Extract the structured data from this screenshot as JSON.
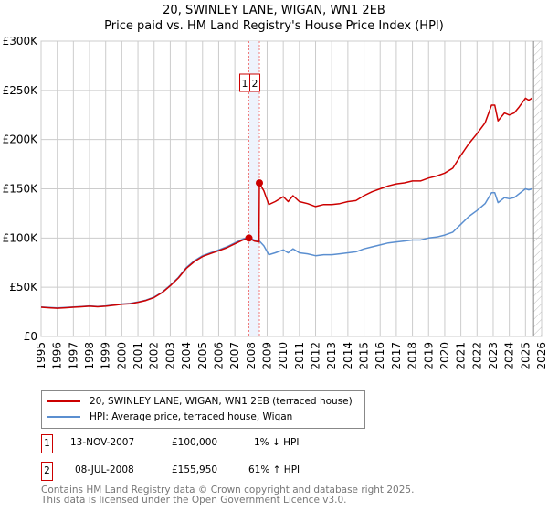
{
  "title_line1": "20, SWINLEY LANE, WIGAN, WN1 2EB",
  "title_line2": "Price paid vs. HM Land Registry's House Price Index (HPI)",
  "chart_data": {
    "type": "line",
    "title": "20, SWINLEY LANE, WIGAN, WN1 2EB — Price paid vs. HM Land Registry's House Price Index (HPI)",
    "xlabel": "",
    "ylabel": "",
    "xlim": [
      1995,
      2026
    ],
    "ylim": [
      0,
      300000
    ],
    "x_ticks": [
      1995,
      1996,
      1997,
      1998,
      1999,
      2000,
      2001,
      2002,
      2003,
      2004,
      2005,
      2006,
      2007,
      2008,
      2009,
      2010,
      2011,
      2012,
      2013,
      2014,
      2015,
      2016,
      2017,
      2018,
      2019,
      2020,
      2021,
      2022,
      2023,
      2024,
      2025,
      2026
    ],
    "y_ticks": [
      0,
      50000,
      100000,
      150000,
      200000,
      250000,
      300000
    ],
    "y_tick_labels": [
      "£0",
      "£50K",
      "£100K",
      "£150K",
      "£200K",
      "£250K",
      "£300K"
    ],
    "grid": true,
    "forecast_hatch_from": 2025.5,
    "series": [
      {
        "name": "20, SWINLEY LANE, WIGAN, WN1 2EB (terraced house)",
        "color": "#cc0000",
        "x": [
          1995,
          1995.5,
          1996,
          1996.5,
          1997,
          1997.5,
          1998,
          1998.5,
          1999,
          1999.5,
          2000,
          2000.5,
          2001,
          2001.5,
          2002,
          2002.5,
          2003,
          2003.5,
          2004,
          2004.5,
          2005,
          2005.5,
          2006,
          2006.5,
          2007,
          2007.5,
          2007.87,
          2008.2,
          2008.5,
          2008.52,
          2008.8,
          2009.1,
          2009.5,
          2010,
          2010.3,
          2010.6,
          2011,
          2011.5,
          2012,
          2012.5,
          2013,
          2013.5,
          2014,
          2014.5,
          2015,
          2015.5,
          2016,
          2016.5,
          2017,
          2017.5,
          2018,
          2018.5,
          2019,
          2019.5,
          2020,
          2020.5,
          2021,
          2021.5,
          2022,
          2022.5,
          2022.9,
          2023.1,
          2023.3,
          2023.7,
          2024,
          2024.3,
          2024.6,
          2025,
          2025.2,
          2025.4
        ],
        "y": [
          29700,
          29200,
          28700,
          29200,
          29700,
          30200,
          30700,
          30200,
          30700,
          31700,
          32700,
          33200,
          34700,
          36600,
          39600,
          44600,
          51500,
          59400,
          69300,
          76200,
          81200,
          84200,
          87100,
          90100,
          94100,
          98000,
          100000,
          97000,
          96000,
          155950,
          148000,
          134000,
          137000,
          142000,
          137000,
          143000,
          137000,
          135000,
          132000,
          134000,
          134000,
          135000,
          137000,
          138000,
          143000,
          147000,
          150000,
          153000,
          155000,
          156000,
          158000,
          158000,
          161000,
          163000,
          166000,
          171000,
          184000,
          196000,
          206000,
          217000,
          235000,
          235000,
          219000,
          227000,
          225000,
          227000,
          233000,
          242000,
          240000,
          242000
        ]
      },
      {
        "name": "HPI: Average price, terraced house, Wigan",
        "color": "#5b8fd0",
        "x": [
          1995,
          1995.5,
          1996,
          1996.5,
          1997,
          1997.5,
          1998,
          1998.5,
          1999,
          1999.5,
          2000,
          2000.5,
          2001,
          2001.5,
          2002,
          2002.5,
          2003,
          2003.5,
          2004,
          2004.5,
          2005,
          2005.5,
          2006,
          2006.5,
          2007,
          2007.5,
          2007.87,
          2008.2,
          2008.52,
          2008.8,
          2009.1,
          2009.5,
          2010,
          2010.3,
          2010.6,
          2011,
          2011.5,
          2012,
          2012.5,
          2013,
          2013.5,
          2014,
          2014.5,
          2015,
          2015.5,
          2016,
          2016.5,
          2017,
          2017.5,
          2018,
          2018.5,
          2019,
          2019.5,
          2020,
          2020.5,
          2021,
          2021.5,
          2022,
          2022.5,
          2022.9,
          2023.1,
          2023.3,
          2023.7,
          2024,
          2024.3,
          2024.6,
          2025,
          2025.2,
          2025.4
        ],
        "y": [
          30000,
          29500,
          29000,
          29500,
          30000,
          30500,
          31000,
          30500,
          31000,
          32000,
          33000,
          33500,
          35000,
          37000,
          40000,
          45000,
          52000,
          60000,
          70000,
          77000,
          82000,
          85000,
          88000,
          91000,
          95000,
          99000,
          101000,
          98000,
          97000,
          92000,
          83000,
          85000,
          88000,
          85000,
          89000,
          85000,
          84000,
          82000,
          83000,
          83000,
          84000,
          85000,
          86000,
          89000,
          91000,
          93000,
          95000,
          96000,
          97000,
          98000,
          98000,
          100000,
          101000,
          103000,
          106000,
          114000,
          122000,
          128000,
          135000,
          146000,
          146000,
          136000,
          141000,
          140000,
          141000,
          145000,
          150000,
          149000,
          150000
        ]
      }
    ],
    "annotations": [
      {
        "label": "1",
        "x": 2007.87,
        "y": 100000
      },
      {
        "label": "2",
        "x": 2008.52,
        "y": 155950
      }
    ]
  },
  "legend": {
    "property": "20, SWINLEY LANE, WIGAN, WN1 2EB (terraced house)",
    "hpi": "HPI: Average price, terraced house, Wigan"
  },
  "sales": [
    {
      "num": "1",
      "date": "13-NOV-2007",
      "price": "£100,000",
      "hpi": "1% ↓ HPI"
    },
    {
      "num": "2",
      "date": "08-JUL-2008",
      "price": "£155,950",
      "hpi": "61% ↑ HPI"
    }
  ],
  "footer": {
    "line1": "Contains HM Land Registry data © Crown copyright and database right 2025.",
    "line2": "This data is licensed under the Open Government Licence v3.0."
  }
}
